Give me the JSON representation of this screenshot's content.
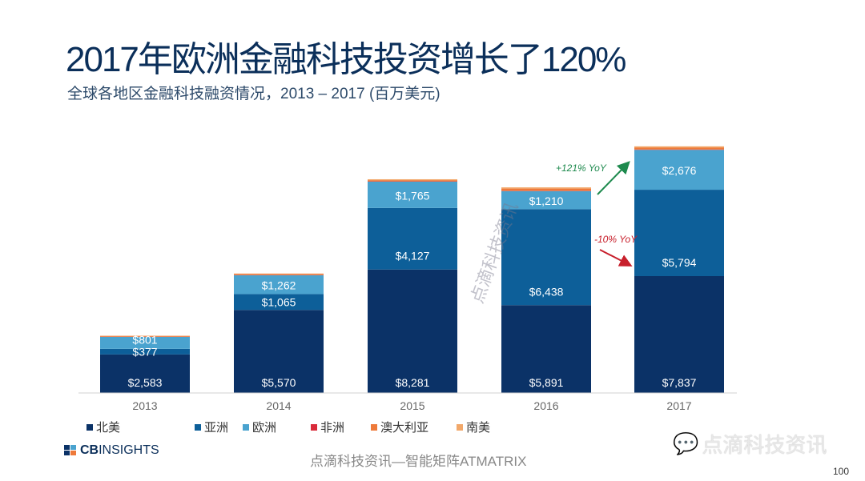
{
  "title": "2017年欧洲金融科技投资增长了120%",
  "subtitle": "全球各地区金融科技融资情况，2013 – 2017 (百万美元)",
  "chart_data": {
    "type": "bar",
    "stacked": true,
    "categories": [
      "2013",
      "2014",
      "2015",
      "2016",
      "2017"
    ],
    "series": [
      {
        "name": "北美",
        "color": "#0b3267",
        "values": [
          2583,
          5570,
          8281,
          5891,
          7837
        ],
        "labels": [
          "$2,583",
          "$5,570",
          "$8,281",
          "$5,891",
          "$7,837"
        ]
      },
      {
        "name": "亚洲",
        "color": "#0d5f99",
        "values": [
          377,
          1065,
          4127,
          6438,
          5794
        ],
        "labels": [
          "$377",
          "$1,065",
          "$4,127",
          "$6,438",
          "$5,794"
        ]
      },
      {
        "name": "欧洲",
        "color": "#4aa3cf",
        "values": [
          801,
          1262,
          1765,
          1210,
          2676
        ],
        "labels": [
          "$801",
          "$1,262",
          "$1,765",
          "$1,210",
          "$2,676"
        ]
      },
      {
        "name": "非洲",
        "color": "#d92b3a",
        "values": [
          10,
          15,
          20,
          20,
          25
        ],
        "labels": [
          "",
          "",
          "",
          "",
          ""
        ]
      },
      {
        "name": "澳大利亚",
        "color": "#ee7a3a",
        "values": [
          40,
          60,
          80,
          150,
          120
        ],
        "labels": [
          "",
          "",
          "",
          "",
          ""
        ]
      },
      {
        "name": "南美",
        "color": "#f2a86a",
        "values": [
          30,
          40,
          60,
          80,
          90
        ],
        "labels": [
          "",
          "",
          "",
          "",
          ""
        ]
      }
    ],
    "annotations": [
      {
        "text": "+121% YoY",
        "color": "#1e8a4e",
        "direction": "up"
      },
      {
        "text": "-10% YoY",
        "color": "#c8202c",
        "direction": "down"
      }
    ],
    "ylim": [
      0,
      18000
    ],
    "grid": false,
    "legend_position": "bottom",
    "xlabel": "",
    "ylabel": ""
  },
  "footer": {
    "logo_cb": "CB",
    "logo_insights": "INSIGHTS",
    "credit": "点滴科技资讯—智能矩阵ATMATRIX",
    "watermark": "点滴科技资讯",
    "diagonal_watermark": "点滴科技资讯",
    "page_number": "100"
  }
}
